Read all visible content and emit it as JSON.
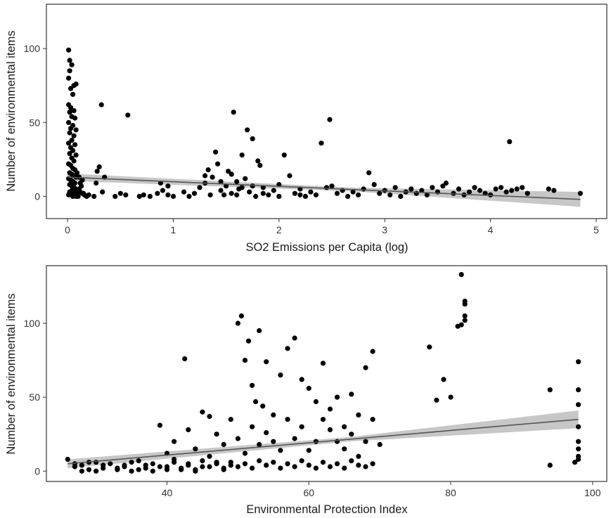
{
  "chart_data": [
    {
      "type": "scatter",
      "xlabel": "SO2 Emissions per Capita (log)",
      "ylabel": "Number of environmental items",
      "xlim": [
        -0.2,
        5.1
      ],
      "ylim": [
        -15,
        130
      ],
      "x_ticks": [
        0,
        1,
        2,
        3,
        4,
        5
      ],
      "y_ticks": [
        0,
        50,
        100
      ],
      "grid": true,
      "legend": "none",
      "trend": {
        "x": [
          0,
          4.85
        ],
        "y": [
          13,
          -2
        ],
        "band_half_width": [
          2.5,
          5
        ]
      },
      "points": [
        [
          0.01,
          99
        ],
        [
          0.02,
          92
        ],
        [
          0.04,
          89
        ],
        [
          0.02,
          85
        ],
        [
          0.01,
          80
        ],
        [
          0.06,
          75
        ],
        [
          0.08,
          76
        ],
        [
          0.03,
          73
        ],
        [
          0.05,
          69
        ],
        [
          0.01,
          62
        ],
        [
          0.03,
          60
        ],
        [
          0.06,
          58
        ],
        [
          0.02,
          57
        ],
        [
          0.04,
          54
        ],
        [
          0.07,
          53
        ],
        [
          0.01,
          50
        ],
        [
          0.05,
          48
        ],
        [
          0.03,
          46
        ],
        [
          0.08,
          45
        ],
        [
          0.02,
          43
        ],
        [
          0.06,
          41
        ],
        [
          0.04,
          38
        ],
        [
          0.01,
          36
        ],
        [
          0.07,
          35
        ],
        [
          0.03,
          33
        ],
        [
          0.05,
          31
        ],
        [
          0.02,
          29
        ],
        [
          0.08,
          28
        ],
        [
          0.04,
          26
        ],
        [
          0.06,
          24
        ],
        [
          0.01,
          22
        ],
        [
          0.03,
          21
        ],
        [
          0.05,
          19
        ],
        [
          0.07,
          18
        ],
        [
          0.02,
          16
        ],
        [
          0.04,
          15
        ],
        [
          0.06,
          14
        ],
        [
          0.08,
          13
        ],
        [
          0.01,
          12
        ],
        [
          0.03,
          11
        ],
        [
          0.05,
          10
        ],
        [
          0.07,
          9
        ],
        [
          0.02,
          8
        ],
        [
          0.04,
          7
        ],
        [
          0.06,
          6
        ],
        [
          0.08,
          5
        ],
        [
          0.1,
          4
        ],
        [
          0.12,
          3
        ],
        [
          0.14,
          2
        ],
        [
          0.16,
          1
        ],
        [
          0.18,
          0
        ],
        [
          0.01,
          1
        ],
        [
          0.03,
          2
        ],
        [
          0.05,
          0
        ],
        [
          0.07,
          1
        ],
        [
          0.09,
          3
        ],
        [
          0.11,
          5
        ],
        [
          0.13,
          7
        ],
        [
          0.15,
          2
        ],
        [
          0.2,
          1
        ],
        [
          0.25,
          0
        ],
        [
          0.1,
          0
        ],
        [
          0.12,
          9
        ],
        [
          0.14,
          11
        ],
        [
          0.02,
          3
        ],
        [
          0.04,
          4
        ],
        [
          0.06,
          2
        ],
        [
          0.08,
          0
        ],
        [
          0.11,
          13
        ],
        [
          0.09,
          16
        ],
        [
          0.32,
          62
        ],
        [
          0.57,
          55
        ],
        [
          0.3,
          20
        ],
        [
          0.28,
          17
        ],
        [
          0.35,
          13
        ],
        [
          0.27,
          9
        ],
        [
          0.33,
          3
        ],
        [
          0.45,
          0
        ],
        [
          0.5,
          2
        ],
        [
          0.55,
          1
        ],
        [
          0.68,
          0
        ],
        [
          0.72,
          1
        ],
        [
          0.78,
          0
        ],
        [
          0.85,
          2
        ],
        [
          0.9,
          4
        ],
        [
          0.95,
          1
        ],
        [
          1.0,
          0
        ],
        [
          0.88,
          9
        ],
        [
          0.95,
          7
        ],
        [
          1.1,
          3
        ],
        [
          1.15,
          0
        ],
        [
          1.2,
          2
        ],
        [
          1.25,
          6
        ],
        [
          1.3,
          9
        ],
        [
          1.33,
          18
        ],
        [
          1.37,
          13
        ],
        [
          1.4,
          30
        ],
        [
          1.45,
          4
        ],
        [
          1.48,
          1
        ],
        [
          1.52,
          17
        ],
        [
          1.57,
          57
        ],
        [
          1.6,
          10
        ],
        [
          1.65,
          28
        ],
        [
          1.7,
          45
        ],
        [
          1.75,
          39
        ],
        [
          1.8,
          24
        ],
        [
          1.82,
          21
        ],
        [
          1.5,
          7
        ],
        [
          1.55,
          2
        ],
        [
          1.62,
          5
        ],
        [
          1.68,
          12
        ],
        [
          1.72,
          3
        ],
        [
          1.78,
          0
        ],
        [
          1.85,
          6
        ],
        [
          1.9,
          1
        ],
        [
          1.95,
          4
        ],
        [
          2.0,
          8
        ],
        [
          2.05,
          28
        ],
        [
          2.1,
          14
        ],
        [
          2.15,
          2
        ],
        [
          2.2,
          5
        ],
        [
          2.25,
          0
        ],
        [
          2.3,
          3
        ],
        [
          2.35,
          1
        ],
        [
          2.4,
          36
        ],
        [
          2.45,
          6
        ],
        [
          2.48,
          52
        ],
        [
          2.5,
          7
        ],
        [
          2.55,
          2
        ],
        [
          2.6,
          4
        ],
        [
          2.65,
          0
        ],
        [
          2.7,
          3
        ],
        [
          2.75,
          1
        ],
        [
          2.8,
          5
        ],
        [
          2.85,
          16
        ],
        [
          2.9,
          8
        ],
        [
          2.95,
          2
        ],
        [
          3.0,
          4
        ],
        [
          3.05,
          1
        ],
        [
          3.1,
          6
        ],
        [
          3.15,
          0
        ],
        [
          3.2,
          3
        ],
        [
          3.25,
          5
        ],
        [
          3.3,
          2
        ],
        [
          3.35,
          4
        ],
        [
          3.4,
          1
        ],
        [
          3.45,
          6
        ],
        [
          3.5,
          3
        ],
        [
          3.55,
          7
        ],
        [
          3.58,
          9
        ],
        [
          3.65,
          2
        ],
        [
          3.7,
          5
        ],
        [
          3.75,
          1
        ],
        [
          3.8,
          3
        ],
        [
          3.85,
          6
        ],
        [
          3.9,
          4
        ],
        [
          3.95,
          2
        ],
        [
          4.0,
          1
        ],
        [
          4.05,
          5
        ],
        [
          4.1,
          6
        ],
        [
          4.15,
          3
        ],
        [
          4.18,
          37
        ],
        [
          4.2,
          4
        ],
        [
          4.25,
          5
        ],
        [
          4.3,
          6
        ],
        [
          4.35,
          2
        ],
        [
          4.55,
          5
        ],
        [
          4.6,
          4
        ],
        [
          4.85,
          2
        ],
        [
          1.35,
          1
        ],
        [
          1.45,
          10
        ],
        [
          1.55,
          15
        ],
        [
          1.65,
          6
        ],
        [
          1.42,
          22
        ],
        [
          1.3,
          14
        ],
        [
          1.6,
          1
        ],
        [
          1.75,
          7
        ],
        [
          1.85,
          2
        ],
        [
          2.0,
          0
        ],
        [
          2.2,
          1
        ]
      ]
    },
    {
      "type": "scatter",
      "xlabel": "Environmental Protection Index",
      "ylabel": "Number of environmental items",
      "xlim": [
        23,
        102
      ],
      "ylim": [
        -7,
        139
      ],
      "x_ticks": [
        40,
        60,
        80,
        100
      ],
      "y_ticks": [
        0,
        50,
        100
      ],
      "grid": true,
      "legend": "none",
      "trend": {
        "x": [
          26,
          98
        ],
        "y": [
          5,
          35
        ],
        "band_half_width": [
          3,
          6
        ]
      },
      "points": [
        [
          26,
          8
        ],
        [
          27,
          5
        ],
        [
          28,
          0
        ],
        [
          29,
          6
        ],
        [
          30,
          0
        ],
        [
          31,
          2
        ],
        [
          32,
          5
        ],
        [
          33,
          1
        ],
        [
          34,
          4
        ],
        [
          35,
          0
        ],
        [
          36,
          7
        ],
        [
          37,
          2
        ],
        [
          38,
          0
        ],
        [
          39,
          31
        ],
        [
          40,
          3
        ],
        [
          41,
          8
        ],
        [
          42,
          1
        ],
        [
          42.5,
          76
        ],
        [
          43,
          5
        ],
        [
          44,
          0
        ],
        [
          45,
          3
        ],
        [
          46,
          37
        ],
        [
          47,
          6
        ],
        [
          48,
          2
        ],
        [
          49,
          4
        ],
        [
          50,
          100
        ],
        [
          50.5,
          105
        ],
        [
          51,
          75
        ],
        [
          51.5,
          88
        ],
        [
          52,
          58
        ],
        [
          52.5,
          47
        ],
        [
          53,
          95
        ],
        [
          53.5,
          44
        ],
        [
          54,
          74
        ],
        [
          55,
          38
        ],
        [
          56,
          65
        ],
        [
          57,
          83
        ],
        [
          58,
          90
        ],
        [
          59,
          62
        ],
        [
          60,
          56
        ],
        [
          61,
          47
        ],
        [
          62,
          73
        ],
        [
          63,
          42
        ],
        [
          64,
          50
        ],
        [
          65,
          30
        ],
        [
          66,
          52
        ],
        [
          67,
          38
        ],
        [
          68,
          70
        ],
        [
          69,
          81
        ],
        [
          70,
          18
        ],
        [
          77,
          84
        ],
        [
          78,
          48
        ],
        [
          79,
          62
        ],
        [
          80,
          50
        ],
        [
          81.5,
          133
        ],
        [
          82,
          115
        ],
        [
          82,
          102
        ],
        [
          81.5,
          99
        ],
        [
          81,
          98
        ],
        [
          82,
          105
        ],
        [
          82,
          113
        ],
        [
          94,
          55
        ],
        [
          94,
          4
        ],
        [
          98,
          74
        ],
        [
          98,
          55
        ],
        [
          98,
          45
        ],
        [
          98,
          30
        ],
        [
          98,
          20
        ],
        [
          98,
          10
        ],
        [
          98,
          8
        ],
        [
          98,
          15
        ],
        [
          97.5,
          6
        ],
        [
          40,
          12
        ],
        [
          41,
          20
        ],
        [
          43,
          28
        ],
        [
          44,
          15
        ],
        [
          45,
          40
        ],
        [
          46,
          10
        ],
        [
          47,
          25
        ],
        [
          48,
          18
        ],
        [
          49,
          35
        ],
        [
          50,
          22
        ],
        [
          51,
          12
        ],
        [
          52,
          30
        ],
        [
          53,
          18
        ],
        [
          54,
          26
        ],
        [
          55,
          20
        ],
        [
          56,
          14
        ],
        [
          57,
          35
        ],
        [
          58,
          22
        ],
        [
          59,
          30
        ],
        [
          60,
          14
        ],
        [
          61,
          20
        ],
        [
          62,
          35
        ],
        [
          63,
          28
        ],
        [
          64,
          20
        ],
        [
          65,
          15
        ],
        [
          66,
          25
        ],
        [
          67,
          10
        ],
        [
          68,
          20
        ],
        [
          69,
          35
        ],
        [
          38,
          5
        ],
        [
          39,
          3
        ],
        [
          40,
          1
        ],
        [
          41,
          6
        ],
        [
          42,
          2
        ],
        [
          43,
          4
        ],
        [
          44,
          1
        ],
        [
          45,
          7
        ],
        [
          46,
          3
        ],
        [
          47,
          5
        ],
        [
          48,
          1
        ],
        [
          49,
          6
        ],
        [
          50,
          3
        ],
        [
          51,
          5
        ],
        [
          52,
          2
        ],
        [
          53,
          7
        ],
        [
          54,
          4
        ],
        [
          55,
          6
        ],
        [
          56,
          2
        ],
        [
          57,
          5
        ],
        [
          58,
          3
        ],
        [
          59,
          7
        ],
        [
          60,
          4
        ],
        [
          61,
          2
        ],
        [
          62,
          6
        ],
        [
          63,
          3
        ],
        [
          64,
          5
        ],
        [
          65,
          2
        ],
        [
          66,
          7
        ],
        [
          67,
          4
        ],
        [
          68,
          3
        ],
        [
          69,
          5
        ],
        [
          34,
          3
        ],
        [
          35,
          6
        ],
        [
          36,
          1
        ],
        [
          37,
          4
        ],
        [
          33,
          2
        ],
        [
          31,
          4
        ],
        [
          30,
          6
        ],
        [
          29,
          1
        ],
        [
          27,
          3
        ],
        [
          28,
          4
        ]
      ]
    }
  ]
}
